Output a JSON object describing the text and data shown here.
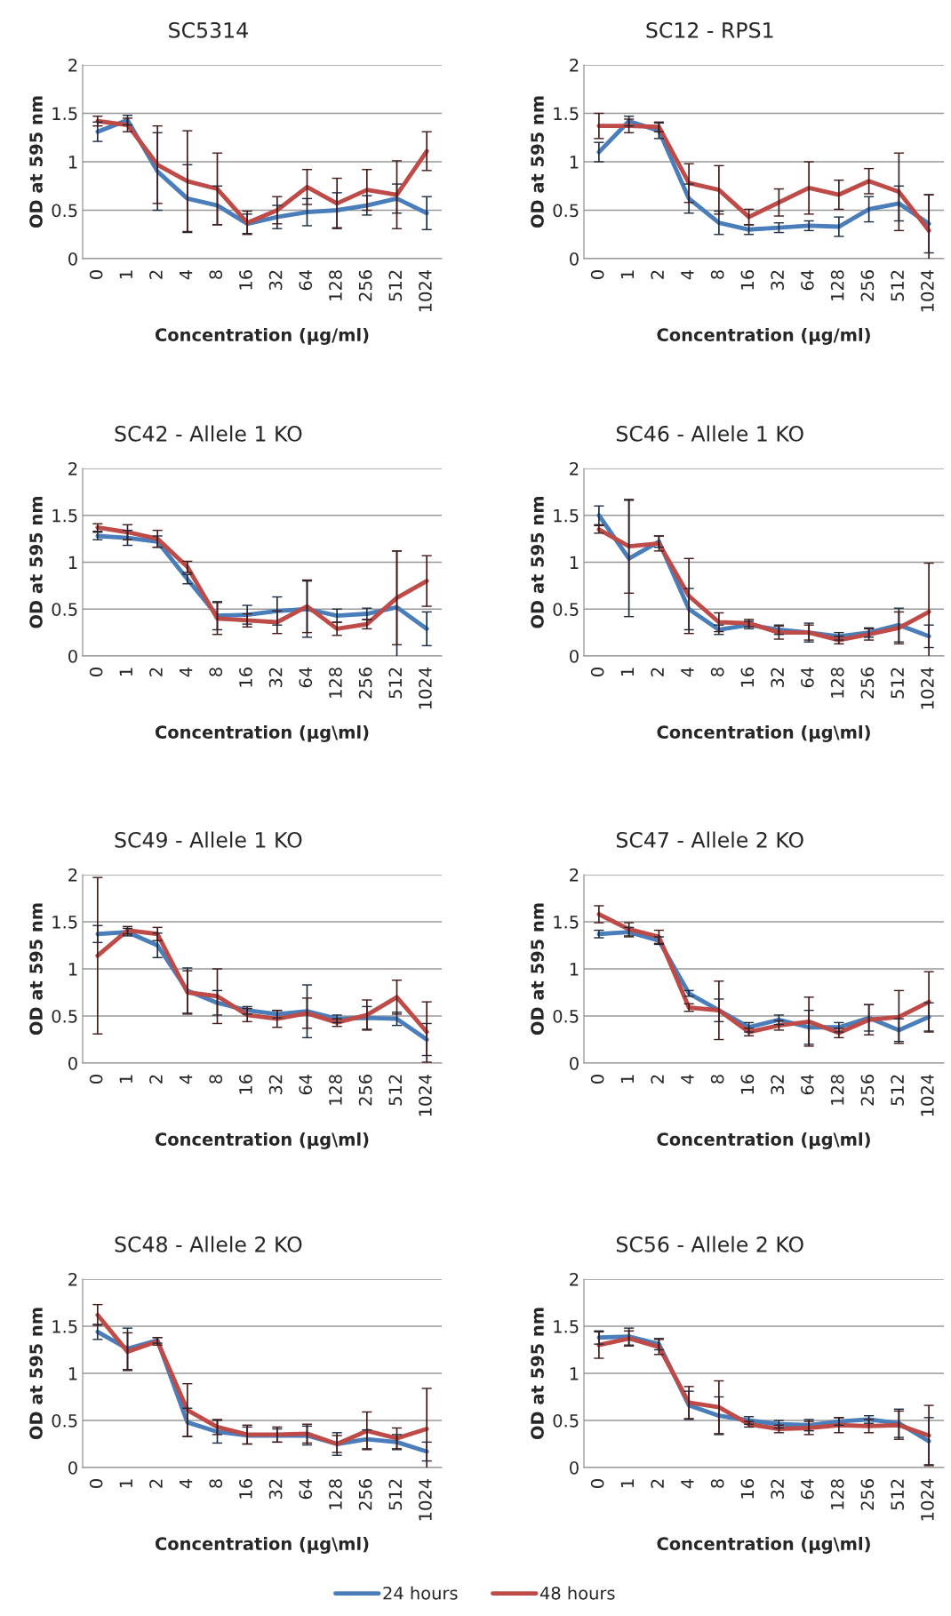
{
  "chart_data": [
    {
      "type": "line",
      "title": "SC5314",
      "xlabel": "Concentration (µg/ml)",
      "ylabel": "OD at 595 nm",
      "categories": [
        "0",
        "1",
        "2",
        "4",
        "8",
        "16",
        "32",
        "64",
        "128",
        "256",
        "512",
        "1024"
      ],
      "ylim": [
        0,
        2
      ],
      "yticks": [
        0,
        0.5,
        1,
        1.5,
        2
      ],
      "grid": "y",
      "series": [
        {
          "color": "#4a7ebb",
          "values": [
            1.31,
            1.43,
            0.9,
            0.62,
            0.55,
            0.36,
            0.43,
            0.48,
            0.5,
            0.55,
            0.62,
            0.47
          ],
          "errors": [
            0.1,
            0.05,
            0.4,
            0.35,
            0.2,
            0.1,
            0.12,
            0.14,
            0.18,
            0.1,
            0.15,
            0.17
          ]
        },
        {
          "color": "#be4b48",
          "values": [
            1.42,
            1.38,
            0.97,
            0.8,
            0.72,
            0.37,
            0.5,
            0.74,
            0.57,
            0.71,
            0.66,
            1.11
          ],
          "errors": [
            0.05,
            0.07,
            0.4,
            0.52,
            0.37,
            0.12,
            0.14,
            0.18,
            0.26,
            0.21,
            0.35,
            0.2
          ]
        }
      ]
    },
    {
      "type": "line",
      "title": "SC12 - RPS1",
      "xlabel": "Concentration (µg/ml)",
      "ylabel": "OD at 595 nm",
      "categories": [
        "0",
        "1",
        "2",
        "4",
        "8",
        "16",
        "32",
        "64",
        "128",
        "256",
        "512",
        "1024"
      ],
      "ylim": [
        0,
        2
      ],
      "yticks": [
        0,
        0.5,
        1,
        1.5,
        2
      ],
      "grid": "y",
      "series": [
        {
          "color": "#4a7ebb",
          "values": [
            1.1,
            1.42,
            1.32,
            0.62,
            0.37,
            0.3,
            0.32,
            0.34,
            0.33,
            0.51,
            0.57,
            0.36
          ],
          "errors": [
            0.1,
            0.05,
            0.08,
            0.15,
            0.12,
            0.05,
            0.05,
            0.05,
            0.1,
            0.13,
            0.18,
            0.3
          ]
        },
        {
          "color": "#be4b48",
          "values": [
            1.37,
            1.37,
            1.36,
            0.78,
            0.71,
            0.43,
            0.58,
            0.73,
            0.66,
            0.8,
            0.69,
            0.29
          ],
          "errors": [
            0.13,
            0.07,
            0.05,
            0.2,
            0.25,
            0.08,
            0.14,
            0.27,
            0.15,
            0.13,
            0.4,
            0.37
          ]
        }
      ]
    },
    {
      "type": "line",
      "title": "SC42 - Allele 1 KO",
      "xlabel": "Concentration (µg\\ml)",
      "ylabel": "OD at 595 nm",
      "categories": [
        "0",
        "1",
        "2",
        "4",
        "8",
        "16",
        "32",
        "64",
        "128",
        "256",
        "512",
        "1024"
      ],
      "ylim": [
        0,
        2
      ],
      "yticks": [
        0,
        0.5,
        1,
        1.5,
        2
      ],
      "grid": "y",
      "series": [
        {
          "color": "#4a7ebb",
          "values": [
            1.28,
            1.26,
            1.22,
            0.82,
            0.43,
            0.44,
            0.48,
            0.5,
            0.43,
            0.45,
            0.52,
            0.29
          ],
          "errors": [
            0.04,
            0.08,
            0.06,
            0.05,
            0.15,
            0.1,
            0.15,
            0.3,
            0.07,
            0.06,
            0.6,
            0.18
          ]
        },
        {
          "color": "#be4b48",
          "values": [
            1.37,
            1.32,
            1.25,
            0.95,
            0.4,
            0.38,
            0.36,
            0.53,
            0.29,
            0.34,
            0.62,
            0.8
          ],
          "errors": [
            0.04,
            0.08,
            0.09,
            0.06,
            0.17,
            0.07,
            0.12,
            0.28,
            0.07,
            0.05,
            0.5,
            0.27
          ]
        }
      ]
    },
    {
      "type": "line",
      "title": "SC46 - Allele 1 KO",
      "xlabel": "Concentration (µg\\ml)",
      "ylabel": "OD at 595 nm",
      "categories": [
        "0",
        "1",
        "2",
        "4",
        "8",
        "16",
        "32",
        "64",
        "128",
        "256",
        "512",
        "1024"
      ],
      "ylim": [
        0,
        2
      ],
      "yticks": [
        0,
        0.5,
        1,
        1.5,
        2
      ],
      "grid": "y",
      "series": [
        {
          "color": "#4a7ebb",
          "values": [
            1.5,
            1.04,
            1.22,
            0.5,
            0.28,
            0.33,
            0.28,
            0.25,
            0.21,
            0.25,
            0.33,
            0.21
          ],
          "errors": [
            0.1,
            0.62,
            0.06,
            0.22,
            0.05,
            0.04,
            0.05,
            0.1,
            0.04,
            0.05,
            0.18,
            0.12
          ]
        },
        {
          "color": "#be4b48",
          "values": [
            1.35,
            1.17,
            1.2,
            0.64,
            0.36,
            0.35,
            0.25,
            0.25,
            0.17,
            0.23,
            0.3,
            0.47
          ],
          "errors": [
            0.04,
            0.5,
            0.08,
            0.4,
            0.1,
            0.04,
            0.07,
            0.08,
            0.04,
            0.06,
            0.17,
            0.52
          ]
        }
      ]
    },
    {
      "type": "line",
      "title": "SC49 - Allele 1 KO",
      "xlabel": "Concentration (µg\\ml)",
      "ylabel": "OD at 595 nm",
      "categories": [
        "0",
        "1",
        "2",
        "4",
        "8",
        "16",
        "32",
        "64",
        "128",
        "256",
        "512",
        "1024"
      ],
      "ylim": [
        0,
        2
      ],
      "yticks": [
        0,
        0.5,
        1,
        1.5,
        2
      ],
      "grid": "y",
      "series": [
        {
          "color": "#4a7ebb",
          "values": [
            1.37,
            1.39,
            1.25,
            0.77,
            0.64,
            0.56,
            0.52,
            0.55,
            0.47,
            0.48,
            0.47,
            0.25
          ],
          "errors": [
            0.09,
            0.04,
            0.13,
            0.24,
            0.13,
            0.04,
            0.04,
            0.28,
            0.04,
            0.12,
            0.07,
            0.17
          ]
        },
        {
          "color": "#be4b48",
          "values": [
            1.14,
            1.41,
            1.37,
            0.75,
            0.71,
            0.51,
            0.47,
            0.53,
            0.43,
            0.51,
            0.7,
            0.33
          ],
          "errors": [
            0.83,
            0.04,
            0.07,
            0.23,
            0.29,
            0.07,
            0.09,
            0.16,
            0.04,
            0.16,
            0.18,
            0.32
          ]
        }
      ]
    },
    {
      "type": "line",
      "title": "SC47 - Allele 2 KO",
      "xlabel": "Concentration (µg\\ml)",
      "ylabel": "OD at 595 nm",
      "categories": [
        "0",
        "1",
        "2",
        "4",
        "8",
        "16",
        "32",
        "64",
        "128",
        "256",
        "512",
        "1024"
      ],
      "ylim": [
        0,
        2
      ],
      "yticks": [
        0,
        0.5,
        1,
        1.5,
        2
      ],
      "grid": "y",
      "series": [
        {
          "color": "#4a7ebb",
          "values": [
            1.37,
            1.39,
            1.3,
            0.74,
            0.56,
            0.38,
            0.46,
            0.38,
            0.38,
            0.48,
            0.35,
            0.49
          ],
          "errors": [
            0.04,
            0.05,
            0.04,
            0.03,
            0.12,
            0.05,
            0.05,
            0.18,
            0.05,
            0.14,
            0.12,
            0.15
          ]
        },
        {
          "color": "#be4b48",
          "values": [
            1.58,
            1.42,
            1.34,
            0.59,
            0.56,
            0.33,
            0.4,
            0.44,
            0.32,
            0.46,
            0.49,
            0.65
          ],
          "errors": [
            0.09,
            0.07,
            0.07,
            0.04,
            0.31,
            0.04,
            0.05,
            0.26,
            0.05,
            0.16,
            0.28,
            0.32
          ]
        }
      ]
    },
    {
      "type": "line",
      "title": "SC48 - Allele 2 KO",
      "xlabel": "Concentration (µg\\ml)",
      "ylabel": "OD at 595 nm",
      "categories": [
        "0",
        "1",
        "2",
        "4",
        "8",
        "16",
        "32",
        "64",
        "128",
        "256",
        "512",
        "1024"
      ],
      "ylim": [
        0,
        2
      ],
      "yticks": [
        0,
        0.5,
        1,
        1.5,
        2
      ],
      "grid": "y",
      "series": [
        {
          "color": "#4a7ebb",
          "values": [
            1.44,
            1.26,
            1.35,
            0.48,
            0.38,
            0.34,
            0.34,
            0.34,
            0.25,
            0.3,
            0.27,
            0.17
          ],
          "errors": [
            0.08,
            0.22,
            0.03,
            0.15,
            0.12,
            0.09,
            0.07,
            0.1,
            0.12,
            0.1,
            0.08,
            0.1
          ]
        },
        {
          "color": "#be4b48",
          "values": [
            1.62,
            1.23,
            1.34,
            0.61,
            0.43,
            0.35,
            0.35,
            0.36,
            0.25,
            0.39,
            0.31,
            0.41
          ],
          "errors": [
            0.11,
            0.2,
            0.04,
            0.28,
            0.08,
            0.1,
            0.08,
            0.1,
            0.09,
            0.2,
            0.11,
            0.43
          ]
        }
      ]
    },
    {
      "type": "line",
      "title": "SC56 - Allele 2 KO",
      "xlabel": "Concentration (µg\\ml)",
      "ylabel": "OD at 595 nm",
      "categories": [
        "0",
        "1",
        "2",
        "4",
        "8",
        "16",
        "32",
        "64",
        "128",
        "256",
        "512",
        "1024"
      ],
      "ylim": [
        0,
        2
      ],
      "yticks": [
        0,
        0.5,
        1,
        1.5,
        2
      ],
      "grid": "y",
      "legend": "bottom",
      "series": [
        {
          "name": "24 hours",
          "color": "#4a7ebb",
          "values": [
            1.38,
            1.39,
            1.31,
            0.66,
            0.55,
            0.5,
            0.46,
            0.45,
            0.49,
            0.51,
            0.47,
            0.28
          ],
          "errors": [
            0.07,
            0.09,
            0.06,
            0.15,
            0.2,
            0.04,
            0.04,
            0.06,
            0.04,
            0.04,
            0.15,
            0.25
          ]
        },
        {
          "name": "48 hours",
          "color": "#be4b48",
          "values": [
            1.3,
            1.37,
            1.28,
            0.69,
            0.64,
            0.46,
            0.41,
            0.42,
            0.45,
            0.44,
            0.45,
            0.34
          ],
          "errors": [
            0.14,
            0.08,
            0.08,
            0.17,
            0.28,
            0.03,
            0.04,
            0.07,
            0.08,
            0.07,
            0.15,
            0.32
          ]
        }
      ]
    }
  ]
}
